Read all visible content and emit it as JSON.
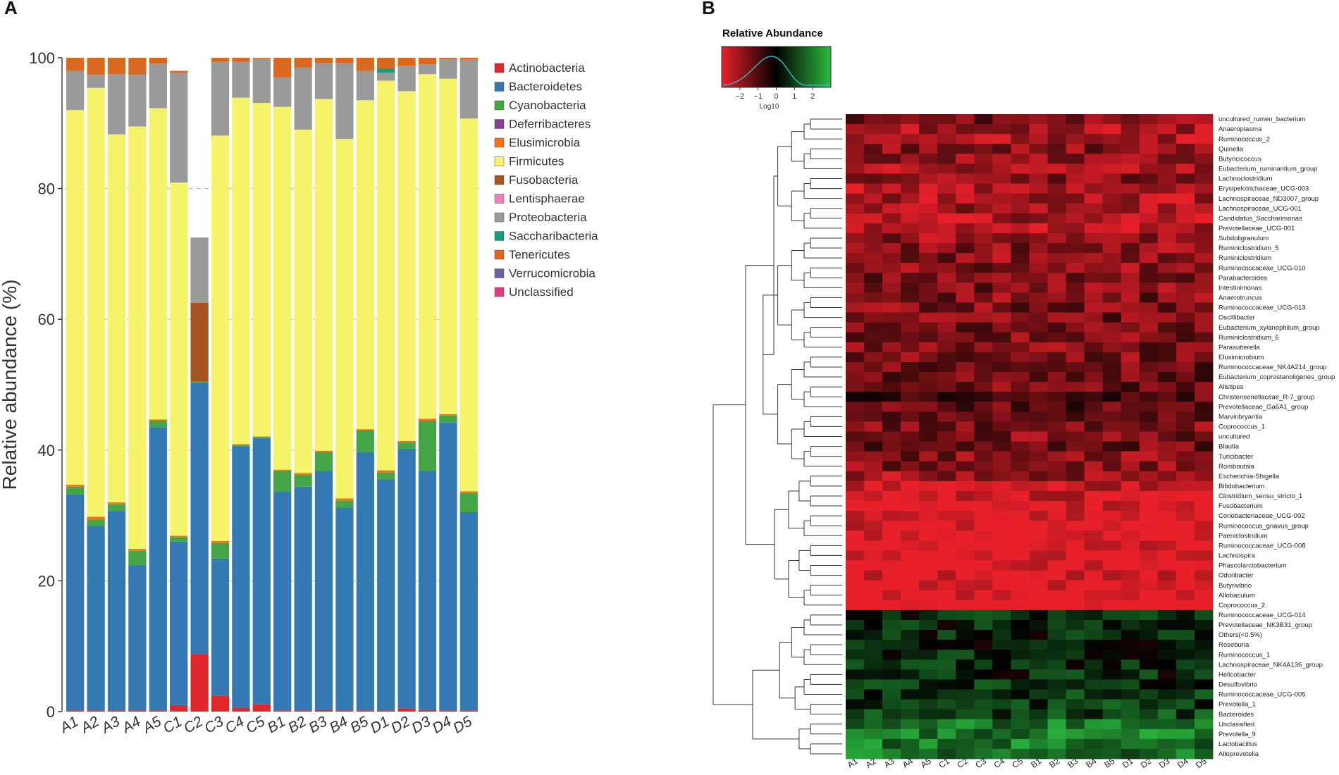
{
  "panels": {
    "a": "A",
    "b": "B"
  },
  "colors": {
    "Actinobacteria": "#e0282c",
    "Bacteroidetes": "#3478b4",
    "Cyanobacteria": "#43a546",
    "Deferribacteres": "#8a3f9a",
    "Elusimicrobia": "#f0761a",
    "Firmicutes": "#f5f36a",
    "Fusobacteria": "#a65424",
    "Lentisphaerae": "#ef80bc",
    "Proteobacteria": "#9a9a9a",
    "Saccharibacteria": "#1a9a7c",
    "Tenericutes": "#d9691e",
    "Verrucomicrobia": "#6a5fa3",
    "Unclassified": "#e23a84"
  },
  "chart_data": [
    {
      "type": "bar",
      "stacked": true,
      "title": "",
      "xlabel": "",
      "ylabel": "Relative abundance (%)",
      "ylim": [
        0,
        100
      ],
      "yticks": [
        "0",
        "20",
        "40",
        "60",
        "80",
        "100"
      ],
      "grid": "dashed horizontal at 20, 40, 60, 80",
      "legend_position": "right",
      "categories": [
        "A1",
        "A2",
        "A3",
        "A4",
        "A5",
        "C1",
        "C2",
        "C3",
        "C4",
        "C5",
        "B1",
        "B2",
        "B3",
        "B4",
        "B5",
        "D1",
        "D2",
        "D3",
        "D4",
        "D5"
      ],
      "series": [
        {
          "name": "Actinobacteria",
          "values": [
            0.2,
            0.2,
            0.2,
            0.2,
            0.2,
            1.0,
            8.8,
            2.4,
            0.6,
            1.1,
            0.2,
            0.2,
            0.3,
            0.2,
            0.2,
            0.2,
            0.5,
            0.3,
            0.2,
            0.2
          ]
        },
        {
          "name": "Bacteroidetes",
          "values": [
            33.0,
            28.2,
            30.5,
            22.2,
            43.3,
            25.0,
            41.5,
            21.0,
            40.0,
            40.7,
            33.5,
            34.2,
            36.5,
            31.0,
            39.5,
            35.3,
            39.7,
            36.5,
            44.0,
            30.3
          ]
        },
        {
          "name": "Cyanobacteria",
          "values": [
            1.2,
            1.0,
            1.0,
            2.2,
            1.0,
            0.7,
            0.2,
            2.4,
            0.2,
            0.2,
            3.1,
            1.8,
            2.9,
            1.1,
            3.3,
            1.1,
            1.0,
            7.7,
            1.1,
            2.9
          ]
        },
        {
          "name": "Deferribacteres",
          "values": [
            0,
            0,
            0,
            0,
            0,
            0,
            0,
            0,
            0,
            0,
            0,
            0,
            0,
            0,
            0,
            0,
            0,
            0,
            0,
            0
          ]
        },
        {
          "name": "Elusimicrobia",
          "values": [
            0.3,
            0.4,
            0.3,
            0.3,
            0.2,
            0.2,
            0,
            0.3,
            0.1,
            0.1,
            0.2,
            0.3,
            0.2,
            0.3,
            0.2,
            0.3,
            0.2,
            0.3,
            0.2,
            0.3
          ]
        },
        {
          "name": "Firmicutes",
          "values": [
            57.3,
            65.6,
            56.3,
            64.6,
            47.6,
            54.0,
            0,
            62.0,
            53.0,
            51.0,
            55.5,
            52.5,
            53.8,
            55.0,
            50.3,
            59.6,
            53.5,
            52.7,
            51.3,
            57.0
          ]
        },
        {
          "name": "Fusobacteria",
          "values": [
            0,
            0,
            0,
            0,
            0,
            0,
            12,
            0,
            0,
            0,
            0,
            0,
            0,
            0,
            0,
            0,
            0,
            0,
            0,
            0
          ]
        },
        {
          "name": "Lentisphaerae",
          "values": [
            0,
            0,
            0,
            0,
            0,
            0,
            0,
            0,
            0,
            0,
            0,
            0,
            0,
            0,
            0,
            0,
            0,
            0,
            0,
            0
          ]
        },
        {
          "name": "Proteobacteria",
          "values": [
            6.0,
            2.0,
            9.2,
            7.9,
            6.8,
            16.8,
            10.0,
            11.3,
            5.5,
            6.8,
            4.5,
            9.5,
            5.5,
            11.6,
            4.5,
            1.2,
            3.9,
            1.5,
            3.0,
            9.0
          ]
        },
        {
          "name": "Saccharibacteria",
          "values": [
            0,
            0,
            0,
            0,
            0,
            0,
            0,
            0,
            0,
            0,
            0,
            0,
            0,
            0,
            0,
            0.7,
            0,
            0,
            0,
            0
          ]
        },
        {
          "name": "Tenericutes",
          "values": [
            2.0,
            2.7,
            2.5,
            2.6,
            0.9,
            0.3,
            0,
            0.6,
            0.6,
            0.1,
            3.0,
            1.7,
            0.8,
            0.8,
            2.0,
            1.6,
            1.2,
            1.0,
            0.2,
            0.3
          ]
        },
        {
          "name": "Verrucomicrobia",
          "values": [
            0,
            0,
            0,
            0,
            0,
            0,
            0,
            0,
            0,
            0,
            0,
            0,
            0,
            0,
            0,
            0,
            0,
            0,
            0,
            0
          ]
        },
        {
          "name": "Unclassified",
          "values": [
            0,
            0,
            0,
            0,
            0,
            0,
            0,
            0,
            0,
            0,
            0,
            0,
            0,
            0,
            0,
            0,
            0,
            0,
            0,
            0
          ]
        }
      ]
    },
    {
      "type": "heatmap",
      "title": "Relative Abundance",
      "color_key": {
        "label": "Log10",
        "ticks": [
          "-2",
          "-1",
          "0",
          "1",
          "2"
        ],
        "range": [
          -3,
          3
        ],
        "low_color": "#e8202a",
        "mid_color": "#000000",
        "high_color": "#2bbb3f"
      },
      "columns": [
        "A1",
        "A2",
        "A3",
        "A4",
        "A5",
        "C1",
        "C2",
        "C3",
        "C4",
        "C5",
        "B1",
        "B2",
        "B3",
        "B4",
        "B5",
        "D1",
        "D2",
        "D3",
        "D4",
        "D5"
      ],
      "rows": [
        "uncultured_rumen_bacterium",
        "Anaeroplasma",
        "Ruminococcus_2",
        "Quinella",
        "Butyricicoccus",
        "Eubacterium_ruminantium_group",
        "Lachnoclostridium",
        "Erysipelotrichaceae_UCG-003",
        "Lachnospiraceae_ND3007_group",
        "Lachnospiraceae_UCG-001",
        "Candidatus_Saccharimonas",
        "Prevotellaceae_UCG-001",
        "Subdoligranulum",
        "Ruminiclostridium_5",
        "Ruminiclostridium",
        "Ruminococcaceae_UCG-010",
        "Parabacteroides",
        "Intestinimonas",
        "Anaerotruncus",
        "Ruminococcaceae_UCG-013",
        "Oscillibacter",
        "Eubacterium_xylanophilum_group",
        "Ruminiclostridium_6",
        "Parasutterella",
        "Elusimicrobium",
        "Ruminococcaceae_NK4A214_group",
        "Eubacterium_coprostanoligenes_group",
        "Alistipes",
        "Christensenellaceae_R-7_group",
        "Prevotellaceae_Ga6A1_group",
        "Marvinbryantia",
        "Coprococcus_1",
        "uncultured",
        "Blautia",
        "Turicibacter",
        "Romboutsia",
        "Escherichia-Shigella",
        "Bifidobacterium",
        "Clostridium_sensu_stricto_1",
        "Fusobacterium",
        "Coriobacteriaceae_UCG-002",
        "Ruminococcus_gnavus_group",
        "Paeniclostridium",
        "Ruminococcaceae_UCG-008",
        "Lachnospira",
        "Phascolarctobacterium",
        "Odoribacter",
        "Butyrivibrio",
        "Allobaculum",
        "Coprococcus_2",
        "Ruminococcaceae_UCG-014",
        "Prevotellaceae_NK3B31_group",
        "Others(<0.5%)",
        "Roseburia",
        "Ruminococcus_1",
        "Lachnospiraceae_NK4A136_group",
        "Helicobacter",
        "Desulfovibrio",
        "Ruminococcaceae_UCG-005",
        "Prevotella_1",
        "Bacteroides",
        "Unclassified",
        "Prevotella_9",
        "Lactobacillus",
        "Alloprevotella"
      ],
      "value_profile_by_row": [
        -1.2,
        -1.6,
        -1.6,
        -1.3,
        -1.5,
        -1.6,
        -1.4,
        -1.7,
        -1.6,
        -1.6,
        -1.6,
        -1.6,
        -1.4,
        -1.3,
        -1.3,
        -1.3,
        -1.2,
        -1.2,
        -1.2,
        -1.2,
        -1.1,
        -1.1,
        -1.1,
        -1.2,
        -1.2,
        -1.0,
        -1.0,
        -1.0,
        -0.8,
        -0.9,
        -1.2,
        -1.2,
        -1.2,
        -1.0,
        -1.3,
        -1.3,
        -1.5,
        -1.9,
        -2.0,
        -2.2,
        -2.3,
        -2.2,
        -2.3,
        -2.3,
        -2.3,
        -2.3,
        -2.2,
        -2.2,
        -2.2,
        -2.6,
        0.4,
        0.4,
        0.4,
        0.3,
        0.5,
        0.5,
        0.4,
        0.5,
        0.6,
        0.7,
        0.7,
        1.4,
        1.4,
        1.4,
        1.3
      ]
    }
  ]
}
